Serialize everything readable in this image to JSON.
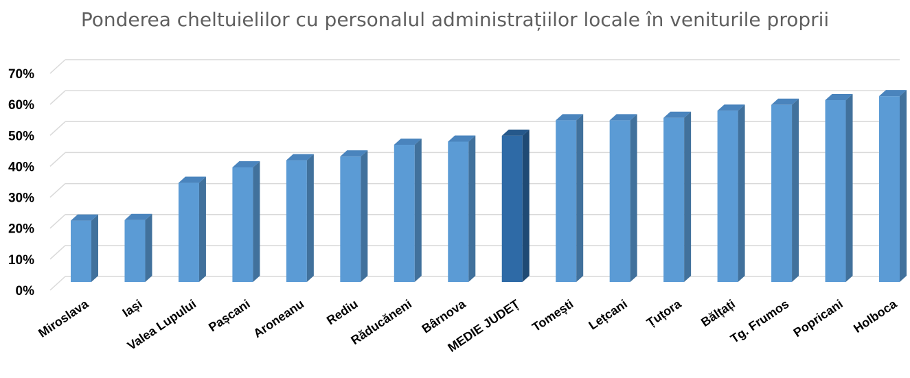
{
  "chart_data": {
    "type": "bar",
    "title": "Ponderea cheltuielilor cu personalul administrațiilor locale în veniturile proprii",
    "categories": [
      "Miroslava",
      "Iași",
      "Valea Lupului",
      "Pașcani",
      "Aroneanu",
      "Rediu",
      "Răducăneni",
      "Bârnova",
      "MEDIE JUDEȚ",
      "Tomești",
      "Lețcani",
      "Țuțora",
      "Bălțați",
      "Tg. Frumos",
      "Popricani",
      "Holboca"
    ],
    "values": [
      0.198,
      0.2,
      0.32,
      0.37,
      0.393,
      0.405,
      0.443,
      0.453,
      0.472,
      0.522,
      0.522,
      0.53,
      0.553,
      0.572,
      0.587,
      0.6
    ],
    "highlight": "MEDIE JUDEȚ",
    "ylim": [
      0,
      0.7
    ],
    "yticks": [
      0,
      0.1,
      0.2,
      0.3,
      0.4,
      0.5,
      0.6,
      0.7
    ],
    "ytick_labels": [
      "0%",
      "10%",
      "20%",
      "30%",
      "40%",
      "50%",
      "60%",
      "70%"
    ],
    "xlabel": "",
    "ylabel": "",
    "grid": true,
    "legend": "none",
    "colors": {
      "bar_front": "#5b9bd5",
      "bar_side": "#41719c",
      "bar_top": "#4a84bd",
      "highlight_front": "#2e6aa6",
      "highlight_side": "#1f4a74",
      "highlight_top": "#25588b",
      "grid": "#d9d9d9",
      "title": "#5f5f5f",
      "text": "#000000"
    }
  }
}
